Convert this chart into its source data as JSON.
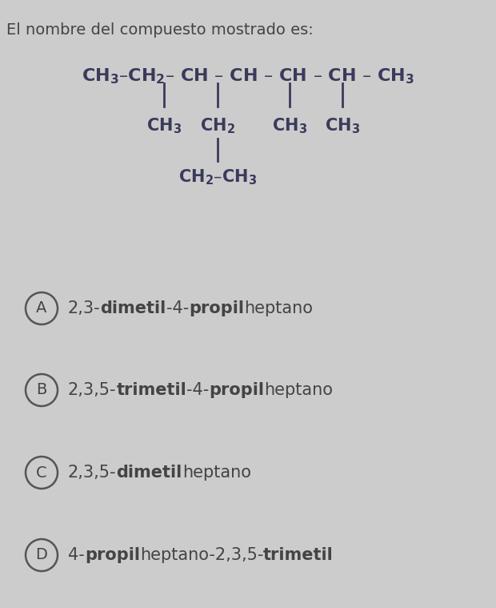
{
  "title": "El nombre del compuesto mostrado es:",
  "title_fontsize": 14,
  "title_color": "#444444",
  "bg_color": "#cccccc",
  "structure_color": "#3a3a5c",
  "structure_fontsize": 15,
  "option_fontsize": 15,
  "option_color": "#444444",
  "circle_color": "#555555",
  "options": [
    {
      "label": "A",
      "parts": [
        {
          "text": "2,3-",
          "bold": false
        },
        {
          "text": "dimetil",
          "bold": true
        },
        {
          "text": "-4-",
          "bold": false
        },
        {
          "text": "propil",
          "bold": true
        },
        {
          "text": "heptano",
          "bold": false
        }
      ]
    },
    {
      "label": "B",
      "parts": [
        {
          "text": "2,3,5-",
          "bold": false
        },
        {
          "text": "trimetil",
          "bold": true
        },
        {
          "text": "-4-",
          "bold": false
        },
        {
          "text": "propil",
          "bold": true
        },
        {
          "text": "heptano",
          "bold": false
        }
      ]
    },
    {
      "label": "C",
      "parts": [
        {
          "text": "2,3,5-",
          "bold": false
        },
        {
          "text": "dimetil",
          "bold": true
        },
        {
          "text": "heptano",
          "bold": false
        }
      ]
    },
    {
      "label": "D",
      "parts": [
        {
          "text": "4-",
          "bold": false
        },
        {
          "text": "propil",
          "bold": true
        },
        {
          "text": "heptano-2,3,5-",
          "bold": false
        },
        {
          "text": "trimetil",
          "bold": true
        }
      ]
    }
  ],
  "main_chain_segments": [
    {
      "text": "CH",
      "sub": "3",
      "dash": "–"
    },
    {
      "text": "CH",
      "sub": "2",
      "dash": "–"
    },
    {
      "text": " CH ",
      "sub": "",
      "dash": "–"
    },
    {
      "text": " CH ",
      "sub": "",
      "dash": "–"
    },
    {
      "text": " CH ",
      "sub": "",
      "dash": "–"
    },
    {
      "text": " CH ",
      "sub": "",
      "dash": "–"
    },
    {
      "text": " CH",
      "sub": "3",
      "dash": ""
    }
  ]
}
